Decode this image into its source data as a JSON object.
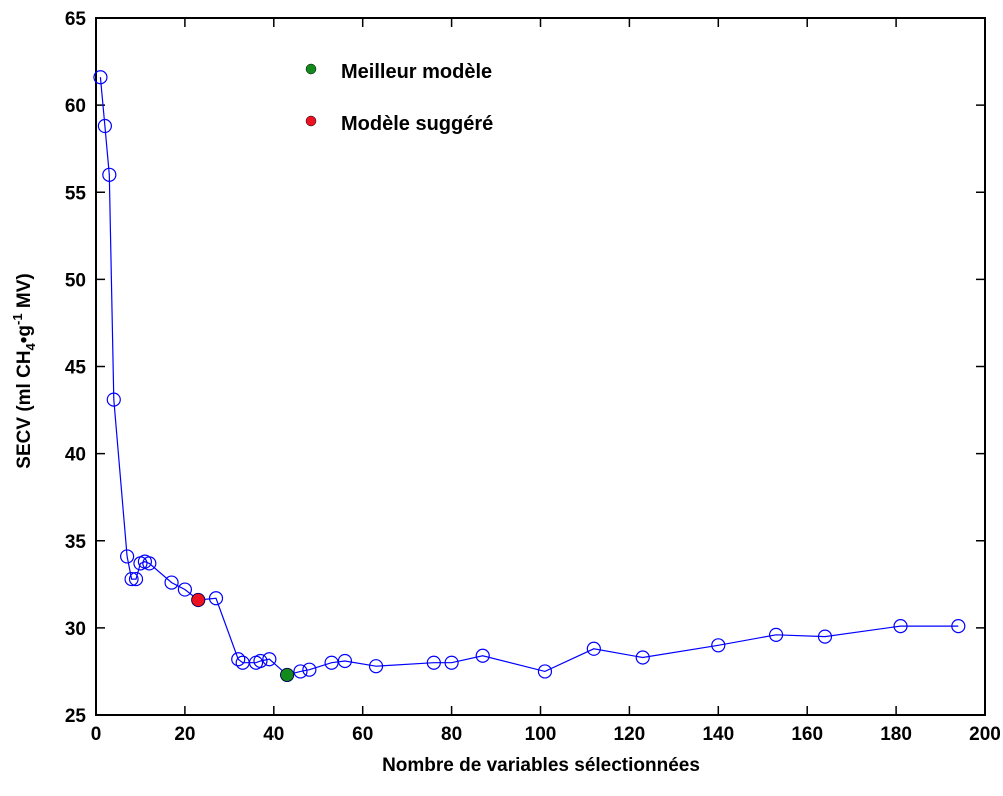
{
  "chart_data": {
    "type": "line",
    "title": "",
    "xlabel": "Nombre de variables sélectionnées",
    "ylabel": {
      "prefix": "SECV (ml CH",
      "sub": "4",
      "middle": "•g",
      "sup": "-1",
      "suffix": " MV)"
    },
    "xlim": [
      0,
      200
    ],
    "ylim": [
      25,
      65
    ],
    "xticks": [
      0,
      20,
      40,
      60,
      80,
      100,
      120,
      140,
      160,
      180,
      200
    ],
    "yticks": [
      25,
      30,
      35,
      40,
      45,
      50,
      55,
      60,
      65
    ],
    "grid": false,
    "legend_position": "top-center",
    "line_color": "#0000ff",
    "marker_edge_color": "#0000ff",
    "series": [
      {
        "x": [
          1,
          2,
          3,
          4,
          7,
          8,
          9,
          10,
          11,
          12,
          17,
          20,
          23,
          27,
          32,
          33,
          36,
          37,
          39,
          43,
          46,
          48,
          53,
          56,
          63,
          76,
          80,
          87,
          101,
          112,
          123,
          140,
          153,
          164,
          181,
          194
        ],
        "y": [
          61.6,
          58.8,
          56.0,
          43.1,
          34.1,
          32.8,
          32.8,
          33.7,
          33.8,
          33.7,
          32.6,
          32.2,
          31.6,
          31.7,
          28.2,
          28.0,
          28.0,
          28.1,
          28.2,
          27.3,
          27.5,
          27.6,
          28.0,
          28.1,
          27.8,
          28.0,
          28.0,
          28.4,
          27.5,
          28.8,
          28.3,
          29.0,
          29.6,
          29.5,
          30.1,
          30.1
        ]
      }
    ],
    "highlights": [
      {
        "name": "Meilleur modèle",
        "x": 43,
        "y": 27.3,
        "color": "#138a1c"
      },
      {
        "name": "Modèle suggéré",
        "x": 23,
        "y": 31.6,
        "color": "#ee1122"
      }
    ]
  }
}
